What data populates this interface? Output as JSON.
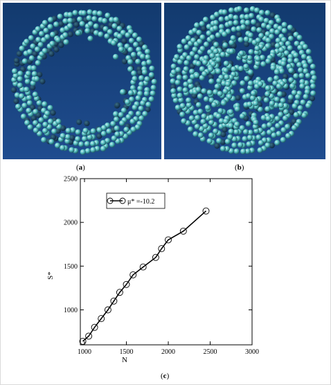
{
  "captions": {
    "a": {
      "pre": "(",
      "letter": "a",
      "post": ")"
    },
    "b": {
      "pre": "(",
      "letter": "b",
      "post": ")"
    },
    "c": {
      "pre": "(",
      "letter": "c",
      "post": ")"
    }
  },
  "colors": {
    "panel_bg": "#1f4c8f",
    "sphere": "#5fc7c9",
    "sphere_dark": "#0e2a46",
    "line": "#000000"
  },
  "chart_data": {
    "type": "line",
    "title": "",
    "xlabel": "N",
    "ylabel": "S*",
    "xlim": [
      950,
      3000
    ],
    "ylim": [
      600,
      2500
    ],
    "xticks": [
      "1000",
      "1500",
      "2000",
      "2500",
      "3000"
    ],
    "yticks": [
      "1000",
      "1500",
      "2000",
      "2500"
    ],
    "legend": {
      "position": "top-left",
      "label": "μ* =-10.2"
    },
    "series": [
      {
        "name": "μ* =-10.2",
        "marker": "open-circle",
        "x": [
          980,
          1050,
          1120,
          1200,
          1280,
          1350,
          1420,
          1500,
          1580,
          1700,
          1850,
          1920,
          2000,
          2180,
          2450
        ],
        "y": [
          640,
          700,
          800,
          900,
          1000,
          1100,
          1200,
          1290,
          1400,
          1490,
          1600,
          1700,
          1800,
          1900,
          2130
        ]
      }
    ]
  }
}
